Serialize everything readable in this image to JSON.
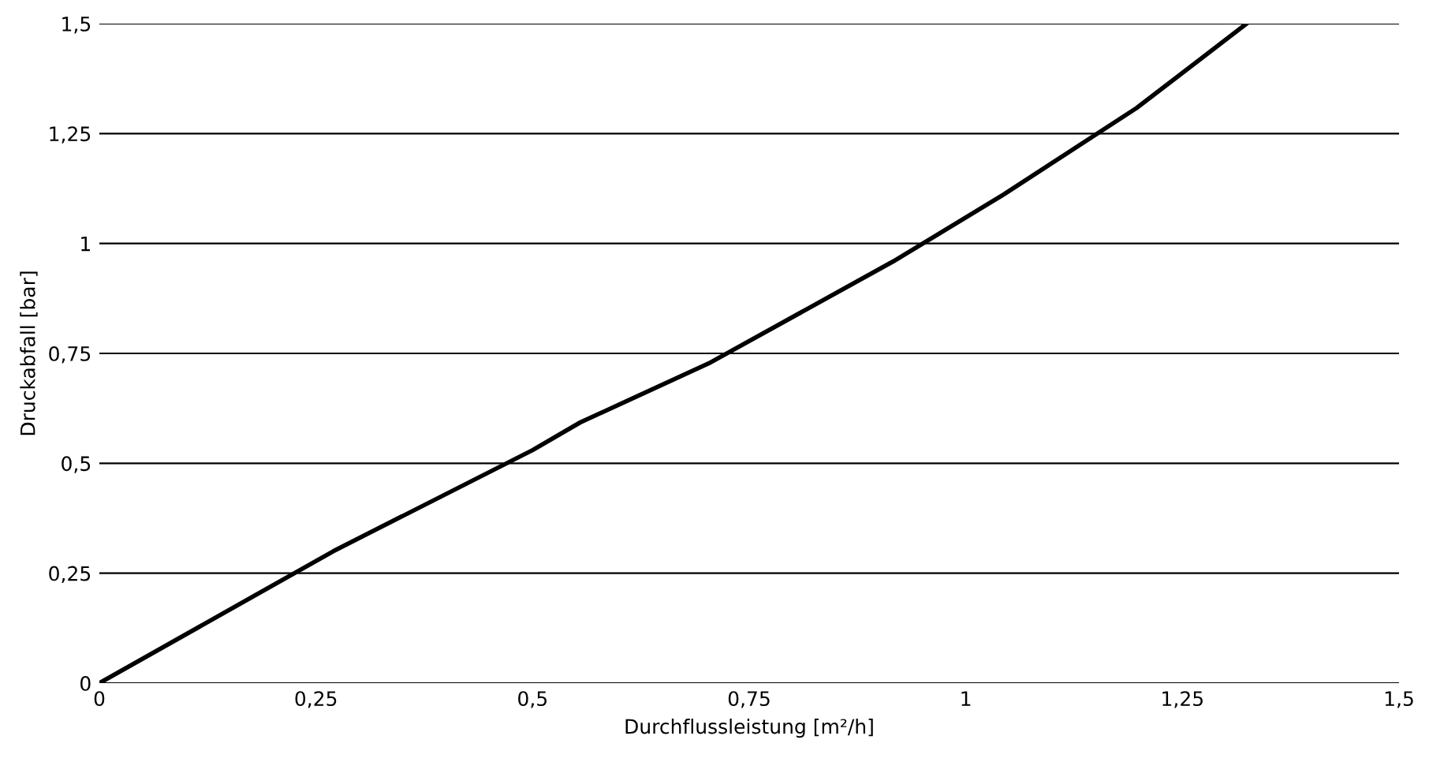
{
  "chart_data": {
    "type": "line",
    "xlabel": "Durchflussleistung [m²/h]",
    "ylabel": "Druckabfall [bar]",
    "x": [
      0,
      0.27,
      0.5,
      0.555,
      0.703,
      0.916,
      1.045,
      1.197,
      1.324
    ],
    "series": [
      {
        "color": "#000000",
        "values": [
          0,
          0.3,
          0.53,
          0.593,
          0.727,
          0.959,
          1.113,
          1.308,
          1.5
        ]
      }
    ],
    "xlim": [
      0,
      1.5
    ],
    "ylim": [
      0,
      1.5
    ],
    "xticks": [
      0,
      {
        "value": 0.25,
        "label": "0,25"
      },
      {
        "value": 0.5,
        "label": "0,5"
      },
      {
        "value": 0.75,
        "label": "0,75"
      },
      1,
      {
        "value": 1.25,
        "label": "1,25"
      },
      {
        "value": 1.5,
        "label": "1,5"
      }
    ],
    "yticks": [
      0,
      {
        "value": 0.25,
        "label": "0,25"
      },
      {
        "value": 0.5,
        "label": "0,5"
      },
      {
        "value": 0.75,
        "label": "0,75"
      },
      1,
      {
        "value": 1.25,
        "label": "1,25"
      },
      {
        "value": 1.5,
        "label": "1,5"
      }
    ],
    "grid": "y",
    "marker": "none",
    "line_style": "solid"
  }
}
